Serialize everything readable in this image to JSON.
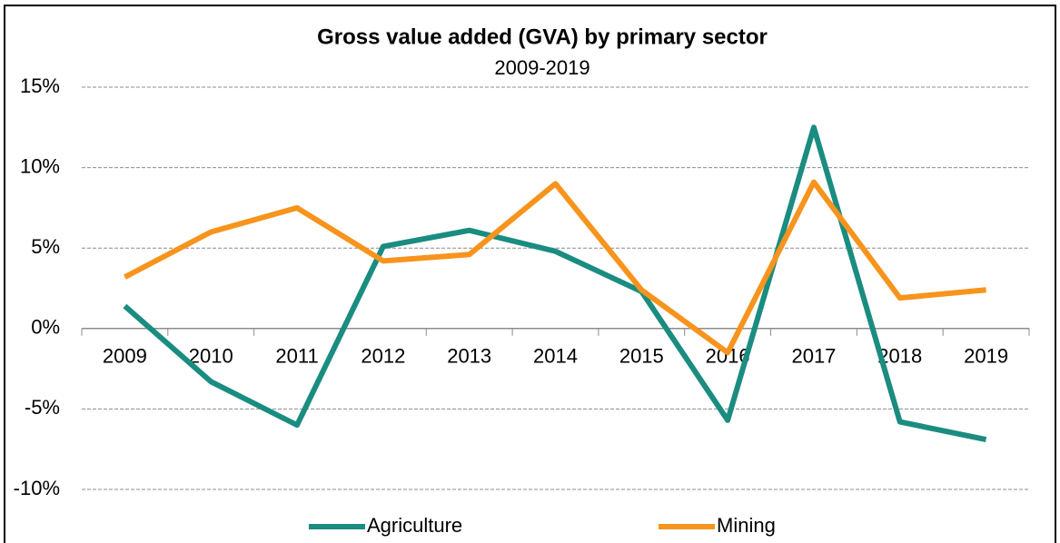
{
  "chart_data": {
    "type": "line",
    "title": "Gross value added (GVA) by primary sector",
    "subtitle": "2009-2019",
    "categories": [
      "2009",
      "2010",
      "2011",
      "2012",
      "2013",
      "2014",
      "2015",
      "2016",
      "2017",
      "2018",
      "2019"
    ],
    "series": [
      {
        "name": "Agriculture",
        "color": "#1a8c80",
        "values": [
          1.4,
          -3.3,
          -6.0,
          5.1,
          6.1,
          4.8,
          2.3,
          -5.7,
          12.5,
          -5.8,
          -6.9
        ]
      },
      {
        "name": "Mining",
        "color": "#f7941d",
        "values": [
          3.2,
          6.0,
          7.5,
          4.2,
          4.6,
          9.0,
          2.4,
          -1.5,
          9.1,
          1.9,
          2.4
        ]
      }
    ],
    "ylim": [
      -10,
      15
    ],
    "yticks": [
      {
        "value": -10,
        "label": "-10%"
      },
      {
        "value": -5,
        "label": "-5%"
      },
      {
        "value": 0,
        "label": "0%"
      },
      {
        "value": 5,
        "label": "5%"
      },
      {
        "value": 10,
        "label": "10%"
      },
      {
        "value": 15,
        "label": "15%"
      }
    ],
    "grid": true,
    "legend": "bottom"
  }
}
